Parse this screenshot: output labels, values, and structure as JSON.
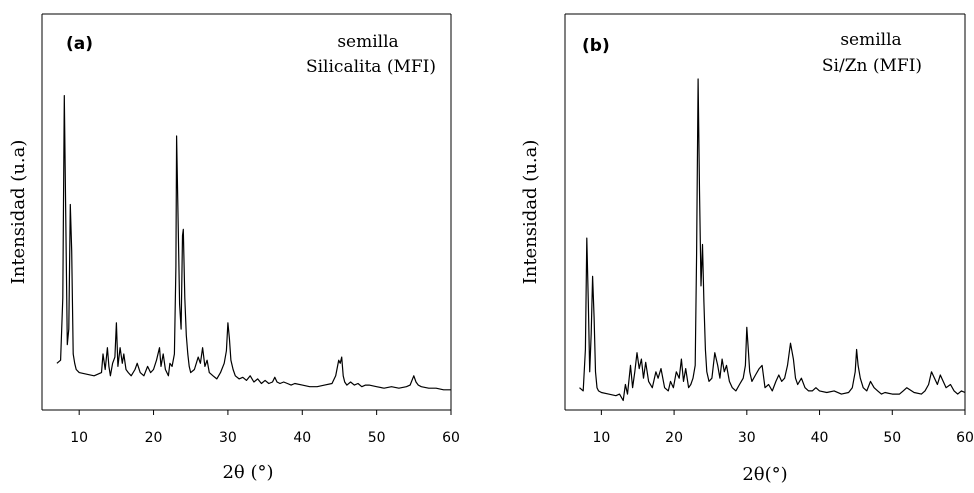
{
  "chart_data": [
    {
      "type": "line",
      "panel_label": "(a)",
      "annotation_line1": "semilla",
      "annotation_line2": "Silicalita (MFI)",
      "xlabel": "2θ (°)",
      "ylabel": "Intensidad (u.a)",
      "xlim": [
        5,
        60
      ],
      "xticks": [
        "10",
        "20",
        "30",
        "40",
        "50",
        "60"
      ],
      "y_ticks_shown": false,
      "grid": false,
      "series": [
        {
          "x": [
            7.0,
            7.5,
            7.8,
            8.0,
            8.2,
            8.4,
            8.6,
            8.8,
            9.0,
            9.2,
            9.4,
            9.6,
            10.0,
            11.0,
            12.0,
            13.0,
            13.2,
            13.5,
            13.8,
            14.0,
            14.2,
            14.5,
            14.8,
            15.0,
            15.2,
            15.5,
            15.8,
            16.0,
            16.3,
            16.6,
            17.0,
            17.5,
            17.8,
            18.2,
            18.7,
            19.2,
            19.6,
            20.0,
            20.4,
            20.8,
            21.0,
            21.3,
            21.6,
            22.0,
            22.2,
            22.5,
            22.8,
            23.0,
            23.1,
            23.3,
            23.5,
            23.7,
            23.9,
            24.0,
            24.2,
            24.4,
            24.6,
            24.8,
            25.0,
            25.5,
            26.0,
            26.3,
            26.6,
            26.9,
            27.2,
            27.5,
            28.0,
            28.5,
            29.0,
            29.5,
            29.8,
            30.0,
            30.2,
            30.4,
            30.7,
            31.0,
            31.5,
            32.0,
            32.5,
            33.0,
            33.5,
            34.0,
            34.5,
            35.0,
            35.5,
            36.0,
            36.3,
            36.6,
            37.0,
            37.5,
            38.0,
            38.5,
            39.0,
            40.0,
            41.0,
            42.0,
            43.0,
            44.0,
            44.5,
            44.9,
            45.1,
            45.3,
            45.5,
            45.7,
            46.0,
            46.5,
            47.0,
            47.5,
            48.0,
            48.5,
            49.0,
            50.0,
            51.0,
            52.0,
            53.0,
            54.0,
            54.5,
            55.0,
            55.3,
            55.6,
            56.0,
            57.0,
            58.0,
            59.0,
            60.0
          ],
          "y": [
            9,
            10,
            30,
            95,
            55,
            15,
            20,
            60,
            45,
            12,
            9,
            7,
            6,
            5.5,
            5,
            6,
            12,
            7,
            14,
            8,
            5,
            9,
            11,
            22,
            8,
            14,
            9,
            12,
            7,
            6,
            5,
            7,
            9,
            6,
            5,
            8,
            6,
            7,
            10,
            14,
            8,
            12,
            7,
            5,
            9,
            8,
            12,
            40,
            82,
            55,
            28,
            20,
            50,
            52,
            30,
            18,
            12,
            8,
            6,
            7,
            11,
            9,
            14,
            8,
            10,
            6,
            5,
            4,
            6,
            9,
            13,
            22,
            17,
            10,
            7,
            5,
            4,
            4.5,
            3.5,
            5,
            3,
            4,
            2.5,
            3.5,
            2.5,
            3,
            4.5,
            3,
            2.5,
            3,
            2.5,
            2,
            2.5,
            2,
            1.5,
            1.5,
            2,
            2.5,
            5,
            10,
            9,
            11,
            5,
            3,
            2,
            3,
            2,
            2.5,
            1.5,
            2,
            2,
            1.5,
            1,
            1.5,
            1,
            1.5,
            2,
            5,
            3,
            2,
            1.5,
            1,
            1,
            0.5,
            0.5
          ]
        }
      ]
    },
    {
      "type": "line",
      "panel_label": "(b)",
      "annotation_line1": "semilla",
      "annotation_line2": "Si/Zn (MFI)",
      "xlabel": "2θ(°)",
      "ylabel": "Intensidad (u.a)",
      "xlim": [
        5,
        60
      ],
      "xticks": [
        "10",
        "20",
        "30",
        "40",
        "50",
        "60"
      ],
      "y_ticks_shown": false,
      "grid": false,
      "series": [
        {
          "x": [
            7.0,
            7.5,
            7.8,
            8.0,
            8.2,
            8.4,
            8.6,
            8.8,
            9.0,
            9.2,
            9.4,
            9.6,
            10.0,
            11.0,
            12.0,
            12.5,
            13.0,
            13.3,
            13.6,
            14.0,
            14.3,
            14.6,
            14.9,
            15.2,
            15.5,
            15.8,
            16.1,
            16.5,
            17.0,
            17.5,
            17.8,
            18.2,
            18.7,
            19.2,
            19.5,
            19.9,
            20.3,
            20.7,
            21.0,
            21.3,
            21.6,
            22.0,
            22.3,
            22.6,
            22.9,
            23.1,
            23.3,
            23.5,
            23.7,
            23.9,
            24.1,
            24.3,
            24.5,
            24.8,
            25.2,
            25.6,
            26.0,
            26.3,
            26.6,
            26.9,
            27.2,
            27.6,
            28.0,
            28.5,
            29.0,
            29.5,
            29.8,
            30.0,
            30.2,
            30.4,
            30.7,
            31.2,
            31.7,
            32.1,
            32.5,
            33.0,
            33.5,
            34.0,
            34.4,
            34.8,
            35.2,
            35.6,
            36.0,
            36.4,
            36.7,
            37.0,
            37.5,
            38.0,
            38.5,
            39.0,
            39.5,
            40.0,
            41.0,
            42.0,
            43.0,
            44.0,
            44.5,
            44.9,
            45.1,
            45.3,
            45.6,
            46.0,
            46.5,
            47.0,
            47.5,
            48.0,
            48.5,
            49.0,
            50.0,
            51.0,
            51.5,
            52.0,
            53.0,
            54.0,
            54.5,
            55.0,
            55.4,
            55.8,
            56.2,
            56.6,
            57.0,
            57.4,
            58.0,
            58.5,
            59.0,
            59.5,
            60.0
          ],
          "y": [
            3,
            2,
            15,
            50,
            30,
            8,
            20,
            38,
            25,
            8,
            3,
            2,
            1.5,
            1,
            0.5,
            1,
            -1,
            4,
            1,
            10,
            3,
            8,
            14,
            9,
            12,
            6,
            11,
            5,
            3,
            8,
            6,
            9,
            3,
            2,
            5,
            3,
            8,
            6,
            12,
            5,
            9,
            3,
            4,
            6,
            10,
            45,
            100,
            65,
            35,
            48,
            30,
            15,
            8,
            5,
            6,
            14,
            10,
            6,
            12,
            8,
            10,
            5,
            3,
            2,
            4,
            6,
            10,
            22,
            15,
            8,
            5,
            7,
            9,
            10,
            3,
            4,
            2,
            5,
            7,
            5,
            6,
            10,
            17,
            12,
            6,
            4,
            6,
            3,
            2,
            2,
            3,
            2,
            1.5,
            2,
            1,
            1.5,
            3,
            8,
            15,
            10,
            6,
            3,
            2,
            5,
            3,
            2,
            1,
            1.5,
            1,
            1,
            2,
            3,
            1.5,
            1,
            2,
            4,
            8,
            6,
            4,
            7,
            5,
            3,
            4,
            2,
            1,
            2,
            1.5
          ]
        }
      ]
    }
  ]
}
